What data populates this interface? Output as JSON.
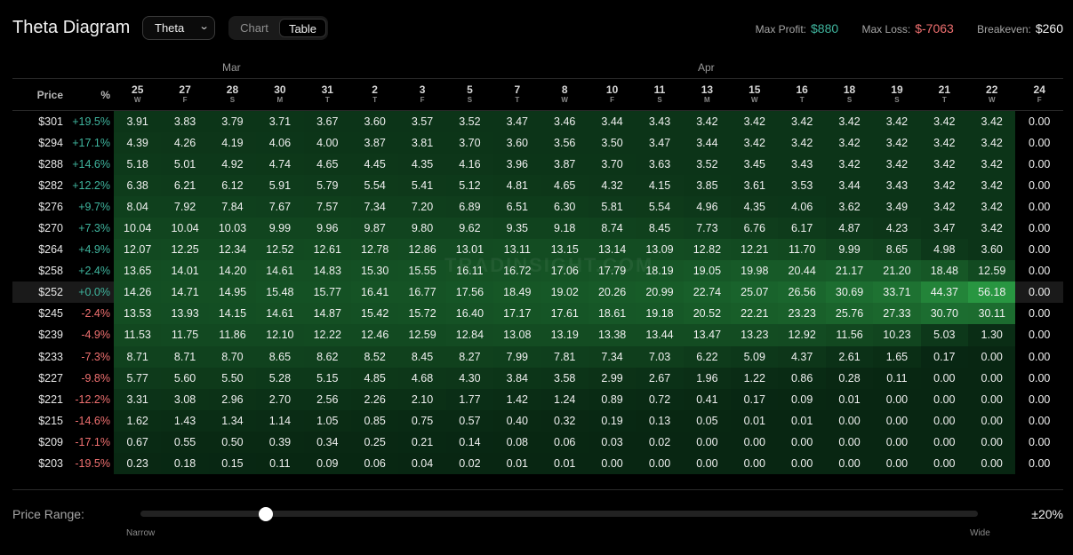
{
  "header": {
    "title": "Theta Diagram",
    "select_value": "Theta",
    "toggle_chart": "Chart",
    "toggle_table": "Table",
    "max_profit_label": "Max Profit:",
    "max_profit": "$880",
    "max_loss_label": "Max Loss:",
    "max_loss": "$-7063",
    "breakeven_label": "Breakeven:",
    "breakeven": "$260"
  },
  "table": {
    "months": [
      "Mar",
      "Apr"
    ],
    "price_header": "Price",
    "pct_header": "%",
    "dates": [
      {
        "day": "25",
        "wd": "W"
      },
      {
        "day": "27",
        "wd": "F"
      },
      {
        "day": "28",
        "wd": "S"
      },
      {
        "day": "30",
        "wd": "M"
      },
      {
        "day": "31",
        "wd": "T"
      },
      {
        "day": "2",
        "wd": "T"
      },
      {
        "day": "3",
        "wd": "F"
      },
      {
        "day": "5",
        "wd": "S"
      },
      {
        "day": "7",
        "wd": "T"
      },
      {
        "day": "8",
        "wd": "W"
      },
      {
        "day": "10",
        "wd": "F"
      },
      {
        "day": "11",
        "wd": "S"
      },
      {
        "day": "13",
        "wd": "M"
      },
      {
        "day": "15",
        "wd": "W"
      },
      {
        "day": "16",
        "wd": "T"
      },
      {
        "day": "18",
        "wd": "S"
      },
      {
        "day": "19",
        "wd": "S"
      },
      {
        "day": "21",
        "wd": "T"
      },
      {
        "day": "22",
        "wd": "W"
      },
      {
        "day": "24",
        "wd": "F"
      }
    ],
    "rows": [
      {
        "price": "$301",
        "pct": "+19.5%",
        "values": [
          "3.91",
          "3.83",
          "3.79",
          "3.71",
          "3.67",
          "3.60",
          "3.57",
          "3.52",
          "3.47",
          "3.46",
          "3.44",
          "3.43",
          "3.42",
          "3.42",
          "3.42",
          "3.42",
          "3.42",
          "3.42",
          "3.42",
          "0.00"
        ]
      },
      {
        "price": "$294",
        "pct": "+17.1%",
        "values": [
          "4.39",
          "4.26",
          "4.19",
          "4.06",
          "4.00",
          "3.87",
          "3.81",
          "3.70",
          "3.60",
          "3.56",
          "3.50",
          "3.47",
          "3.44",
          "3.42",
          "3.42",
          "3.42",
          "3.42",
          "3.42",
          "3.42",
          "0.00"
        ]
      },
      {
        "price": "$288",
        "pct": "+14.6%",
        "values": [
          "5.18",
          "5.01",
          "4.92",
          "4.74",
          "4.65",
          "4.45",
          "4.35",
          "4.16",
          "3.96",
          "3.87",
          "3.70",
          "3.63",
          "3.52",
          "3.45",
          "3.43",
          "3.42",
          "3.42",
          "3.42",
          "3.42",
          "0.00"
        ]
      },
      {
        "price": "$282",
        "pct": "+12.2%",
        "values": [
          "6.38",
          "6.21",
          "6.12",
          "5.91",
          "5.79",
          "5.54",
          "5.41",
          "5.12",
          "4.81",
          "4.65",
          "4.32",
          "4.15",
          "3.85",
          "3.61",
          "3.53",
          "3.44",
          "3.43",
          "3.42",
          "3.42",
          "0.00"
        ]
      },
      {
        "price": "$276",
        "pct": "+9.7%",
        "values": [
          "8.04",
          "7.92",
          "7.84",
          "7.67",
          "7.57",
          "7.34",
          "7.20",
          "6.89",
          "6.51",
          "6.30",
          "5.81",
          "5.54",
          "4.96",
          "4.35",
          "4.06",
          "3.62",
          "3.49",
          "3.42",
          "3.42",
          "0.00"
        ]
      },
      {
        "price": "$270",
        "pct": "+7.3%",
        "values": [
          "10.04",
          "10.04",
          "10.03",
          "9.99",
          "9.96",
          "9.87",
          "9.80",
          "9.62",
          "9.35",
          "9.18",
          "8.74",
          "8.45",
          "7.73",
          "6.76",
          "6.17",
          "4.87",
          "4.23",
          "3.47",
          "3.42",
          "0.00"
        ]
      },
      {
        "price": "$264",
        "pct": "+4.9%",
        "values": [
          "12.07",
          "12.25",
          "12.34",
          "12.52",
          "12.61",
          "12.78",
          "12.86",
          "13.01",
          "13.11",
          "13.15",
          "13.14",
          "13.09",
          "12.82",
          "12.21",
          "11.70",
          "9.99",
          "8.65",
          "4.98",
          "3.60",
          "0.00"
        ]
      },
      {
        "price": "$258",
        "pct": "+2.4%",
        "values": [
          "13.65",
          "14.01",
          "14.20",
          "14.61",
          "14.83",
          "15.30",
          "15.55",
          "16.11",
          "16.72",
          "17.06",
          "17.79",
          "18.19",
          "19.05",
          "19.98",
          "20.44",
          "21.17",
          "21.20",
          "18.48",
          "12.59",
          "0.00"
        ]
      },
      {
        "price": "$252",
        "pct": "+0.0%",
        "atm": true,
        "values": [
          "14.26",
          "14.71",
          "14.95",
          "15.48",
          "15.77",
          "16.41",
          "16.77",
          "17.56",
          "18.49",
          "19.02",
          "20.26",
          "20.99",
          "22.74",
          "25.07",
          "26.56",
          "30.69",
          "33.71",
          "44.37",
          "56.18",
          "0.00"
        ]
      },
      {
        "price": "$245",
        "pct": "-2.4%",
        "values": [
          "13.53",
          "13.93",
          "14.15",
          "14.61",
          "14.87",
          "15.42",
          "15.72",
          "16.40",
          "17.17",
          "17.61",
          "18.61",
          "19.18",
          "20.52",
          "22.21",
          "23.23",
          "25.76",
          "27.33",
          "30.70",
          "30.11",
          "0.00"
        ]
      },
      {
        "price": "$239",
        "pct": "-4.9%",
        "values": [
          "11.53",
          "11.75",
          "11.86",
          "12.10",
          "12.22",
          "12.46",
          "12.59",
          "12.84",
          "13.08",
          "13.19",
          "13.38",
          "13.44",
          "13.47",
          "13.23",
          "12.92",
          "11.56",
          "10.23",
          "5.03",
          "1.30",
          "0.00"
        ]
      },
      {
        "price": "$233",
        "pct": "-7.3%",
        "values": [
          "8.71",
          "8.71",
          "8.70",
          "8.65",
          "8.62",
          "8.52",
          "8.45",
          "8.27",
          "7.99",
          "7.81",
          "7.34",
          "7.03",
          "6.22",
          "5.09",
          "4.37",
          "2.61",
          "1.65",
          "0.17",
          "0.00",
          "0.00"
        ]
      },
      {
        "price": "$227",
        "pct": "-9.8%",
        "values": [
          "5.77",
          "5.60",
          "5.50",
          "5.28",
          "5.15",
          "4.85",
          "4.68",
          "4.30",
          "3.84",
          "3.58",
          "2.99",
          "2.67",
          "1.96",
          "1.22",
          "0.86",
          "0.28",
          "0.11",
          "0.00",
          "0.00",
          "0.00"
        ]
      },
      {
        "price": "$221",
        "pct": "-12.2%",
        "values": [
          "3.31",
          "3.08",
          "2.96",
          "2.70",
          "2.56",
          "2.26",
          "2.10",
          "1.77",
          "1.42",
          "1.24",
          "0.89",
          "0.72",
          "0.41",
          "0.17",
          "0.09",
          "0.01",
          "0.00",
          "0.00",
          "0.00",
          "0.00"
        ]
      },
      {
        "price": "$215",
        "pct": "-14.6%",
        "values": [
          "1.62",
          "1.43",
          "1.34",
          "1.14",
          "1.05",
          "0.85",
          "0.75",
          "0.57",
          "0.40",
          "0.32",
          "0.19",
          "0.13",
          "0.05",
          "0.01",
          "0.01",
          "0.00",
          "0.00",
          "0.00",
          "0.00",
          "0.00"
        ]
      },
      {
        "price": "$209",
        "pct": "-17.1%",
        "values": [
          "0.67",
          "0.55",
          "0.50",
          "0.39",
          "0.34",
          "0.25",
          "0.21",
          "0.14",
          "0.08",
          "0.06",
          "0.03",
          "0.02",
          "0.00",
          "0.00",
          "0.00",
          "0.00",
          "0.00",
          "0.00",
          "0.00",
          "0.00"
        ]
      },
      {
        "price": "$203",
        "pct": "-19.5%",
        "values": [
          "0.23",
          "0.18",
          "0.15",
          "0.11",
          "0.09",
          "0.06",
          "0.04",
          "0.02",
          "0.01",
          "0.01",
          "0.00",
          "0.00",
          "0.00",
          "0.00",
          "0.00",
          "0.00",
          "0.00",
          "0.00",
          "0.00",
          "0.00"
        ]
      }
    ]
  },
  "watermark": "TRADINSIGHT.COM",
  "range": {
    "label": "Price Range:",
    "value": "±20%",
    "narrow": "Narrow",
    "wide": "Wide",
    "slider_fraction": 0.15
  },
  "colors": {
    "positive": "#3fb59e",
    "negative": "#f07070",
    "cell_green": "#1f9a3a"
  }
}
